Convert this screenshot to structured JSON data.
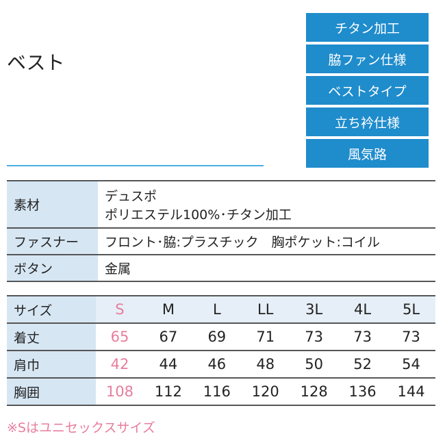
{
  "title": "ベスト",
  "badges": [
    "チタン加工",
    "脇ファン仕様",
    "ベストタイプ",
    "立ち衿仕様",
    "風気路"
  ],
  "spec": {
    "material_label": "素材",
    "material_line1": "デュスポ",
    "material_line2": "ポリエステル100%･チタン加工",
    "fastener_label": "ファスナー",
    "fastener_value": "フロント･脇:プラスチック　胸ポケット:コイル",
    "button_label": "ボタン",
    "button_value": "金属"
  },
  "sizes": {
    "header": "サイズ",
    "columns": [
      "S",
      "M",
      "L",
      "LL",
      "3L",
      "4L",
      "5L"
    ],
    "rows": [
      {
        "label": "着丈",
        "values": [
          "65",
          "67",
          "69",
          "71",
          "73",
          "73",
          "73"
        ]
      },
      {
        "label": "肩巾",
        "values": [
          "42",
          "44",
          "46",
          "48",
          "50",
          "52",
          "54"
        ]
      },
      {
        "label": "胸囲",
        "values": [
          "108",
          "112",
          "116",
          "120",
          "128",
          "136",
          "144"
        ]
      }
    ]
  },
  "note": "※Sはユニセックスサイズ",
  "colors": {
    "accent": "#1f8ccc",
    "highlight": "#e87d9e",
    "label_bg": "#d6e6f3"
  }
}
